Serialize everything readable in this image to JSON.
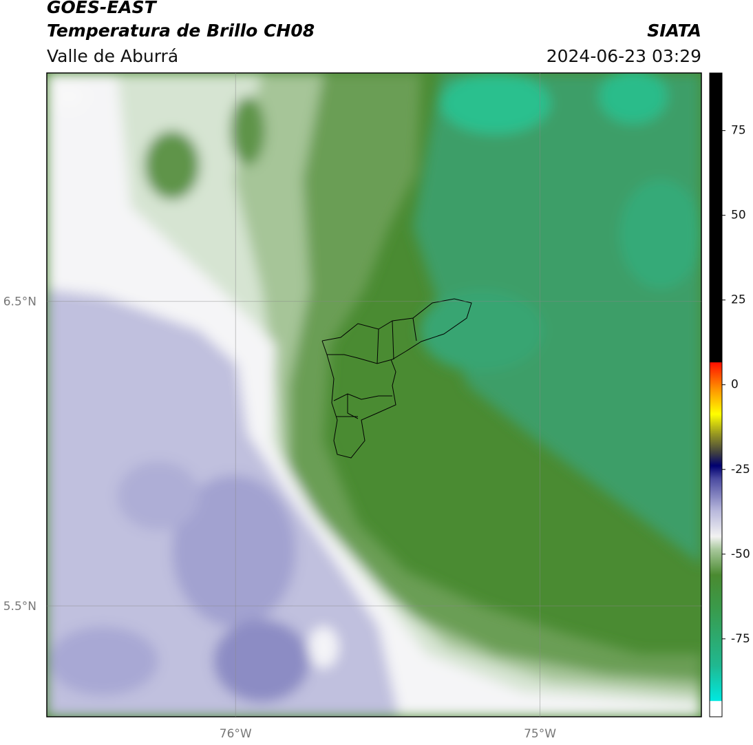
{
  "header": {
    "title": "GOES-EAST",
    "subtitle": "Temperatura de Brillo CH08",
    "region": "Valle de Aburrá",
    "source": "SIATA",
    "datetime": "2024-06-23 03:29"
  },
  "map": {
    "xlim": [
      -76.62,
      -74.47
    ],
    "ylim": [
      5.136,
      7.25
    ],
    "xticks": [
      {
        "value": -76,
        "label": "76°W"
      },
      {
        "value": -75,
        "label": "75°W"
      }
    ],
    "yticks": [
      {
        "value": 6.5,
        "label": "6.5°N"
      },
      {
        "value": 5.5,
        "label": "5.5°N"
      }
    ],
    "grid": true
  },
  "colorbar": {
    "lim": [
      -98,
      92
    ],
    "ticks": [
      75,
      50,
      25,
      0,
      -25,
      -50,
      -75
    ]
  }
}
